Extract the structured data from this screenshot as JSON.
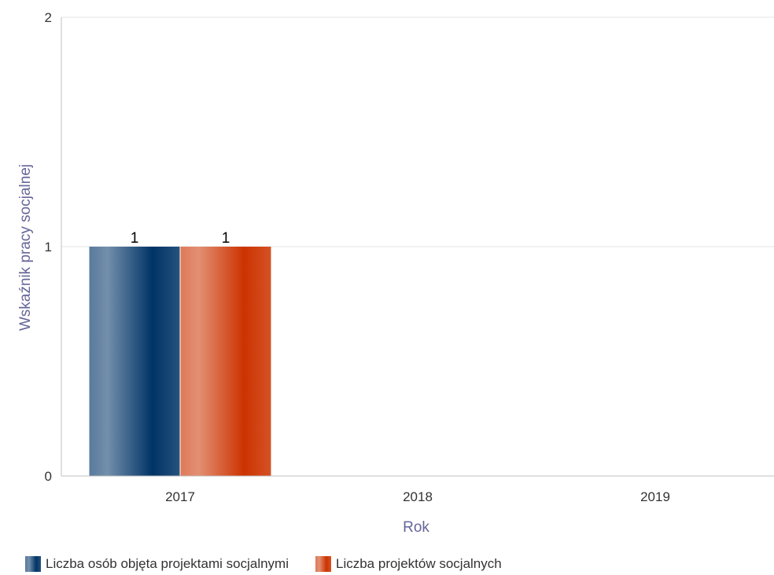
{
  "chart_data": {
    "type": "bar",
    "title": "",
    "xlabel": "Rok",
    "ylabel": "Wskaźnik pracy socjalnej",
    "categories": [
      "2017",
      "2018",
      "2019"
    ],
    "ylim": [
      0,
      2
    ],
    "yticks": [
      0,
      1,
      2
    ],
    "grid": true,
    "legend_position": "bottom-left",
    "series": [
      {
        "name": "Liczba osób objęta projektami socjalnymi",
        "values": [
          1,
          0,
          0
        ],
        "color": "#003366",
        "data_labels": [
          "1",
          "",
          ""
        ]
      },
      {
        "name": "Liczba projektów socjalnych",
        "values": [
          1,
          0,
          0
        ],
        "color": "#cc3300",
        "data_labels": [
          "1",
          "",
          ""
        ]
      }
    ]
  },
  "colors": {
    "grid": "#e6e6e6",
    "axis": "#c0c0c0",
    "axis_title": "#666699",
    "tick_label": "#333333"
  }
}
